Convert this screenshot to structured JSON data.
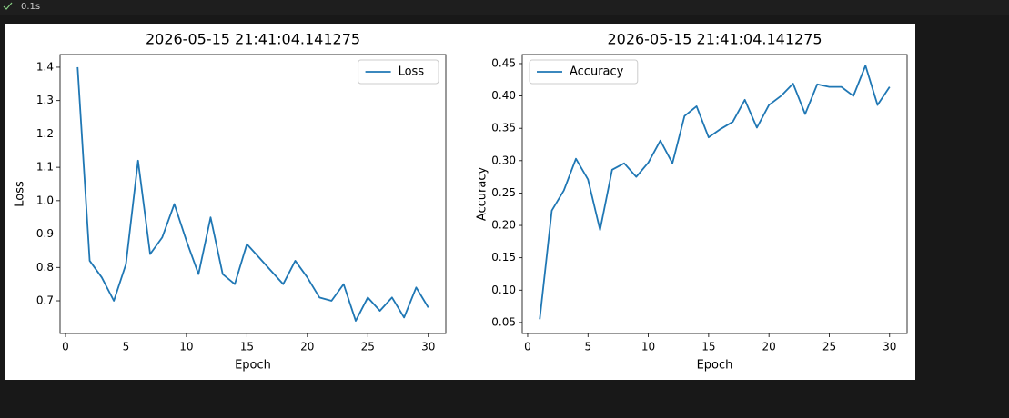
{
  "cell": {
    "duration": "0.1s"
  },
  "chart_data": [
    {
      "type": "line",
      "title": "2026-05-15 21:41:04.141275",
      "xlabel": "Epoch",
      "ylabel": "Loss",
      "x": [
        1,
        2,
        3,
        4,
        5,
        6,
        7,
        8,
        9,
        10,
        11,
        12,
        13,
        14,
        15,
        16,
        17,
        18,
        19,
        20,
        21,
        22,
        23,
        24,
        25,
        26,
        27,
        28,
        29,
        30
      ],
      "series": [
        {
          "name": "Loss",
          "color": "#1f77b4",
          "values": [
            1.4,
            0.82,
            0.77,
            0.7,
            0.81,
            1.12,
            0.84,
            0.89,
            0.99,
            0.88,
            0.78,
            0.95,
            0.78,
            0.75,
            0.87,
            0.83,
            0.79,
            0.75,
            0.82,
            0.77,
            0.71,
            0.7,
            0.75,
            0.64,
            0.71,
            0.67,
            0.71,
            0.65,
            0.74,
            0.68
          ]
        }
      ],
      "xlim": [
        -0.45,
        31.45
      ],
      "xticks": [
        0,
        5,
        10,
        15,
        20,
        25,
        30
      ],
      "ylim": [
        0.602,
        1.438
      ],
      "yticks": [
        0.7,
        0.8,
        0.9,
        {
          "value": 1,
          "label": "1.0"
        },
        1.1,
        1.2,
        1.3,
        1.4
      ],
      "grid": false,
      "legend": "upper-right"
    },
    {
      "type": "line",
      "title": "2026-05-15 21:41:04.141275",
      "xlabel": "Epoch",
      "ylabel": "Accuracy",
      "x": [
        1,
        2,
        3,
        4,
        5,
        6,
        7,
        8,
        9,
        10,
        11,
        12,
        13,
        14,
        15,
        16,
        17,
        18,
        19,
        20,
        21,
        22,
        23,
        24,
        25,
        26,
        27,
        28,
        29,
        30
      ],
      "series": [
        {
          "name": "Accuracy",
          "color": "#1f77b4",
          "values": [
            0.055,
            0.223,
            0.254,
            0.303,
            0.271,
            0.193,
            0.286,
            0.296,
            0.275,
            0.297,
            0.331,
            0.296,
            0.369,
            0.384,
            0.336,
            0.349,
            0.36,
            0.394,
            0.351,
            0.386,
            0.4,
            0.419,
            0.372,
            0.418,
            0.414,
            0.414,
            0.4,
            0.447,
            0.386,
            0.414
          ]
        }
      ],
      "xlim": [
        -0.45,
        31.45
      ],
      "xticks": [
        0,
        5,
        10,
        15,
        20,
        25,
        30
      ],
      "ylim": [
        0.033,
        0.464
      ],
      "yticks": [
        0.05,
        {
          "value": 0.1,
          "label": "0.10"
        },
        0.15,
        {
          "value": 0.2,
          "label": "0.20"
        },
        0.25,
        {
          "value": 0.3,
          "label": "0.30"
        },
        0.35,
        {
          "value": 0.4,
          "label": "0.40"
        },
        0.45
      ],
      "grid": false,
      "legend": "upper-left"
    }
  ]
}
